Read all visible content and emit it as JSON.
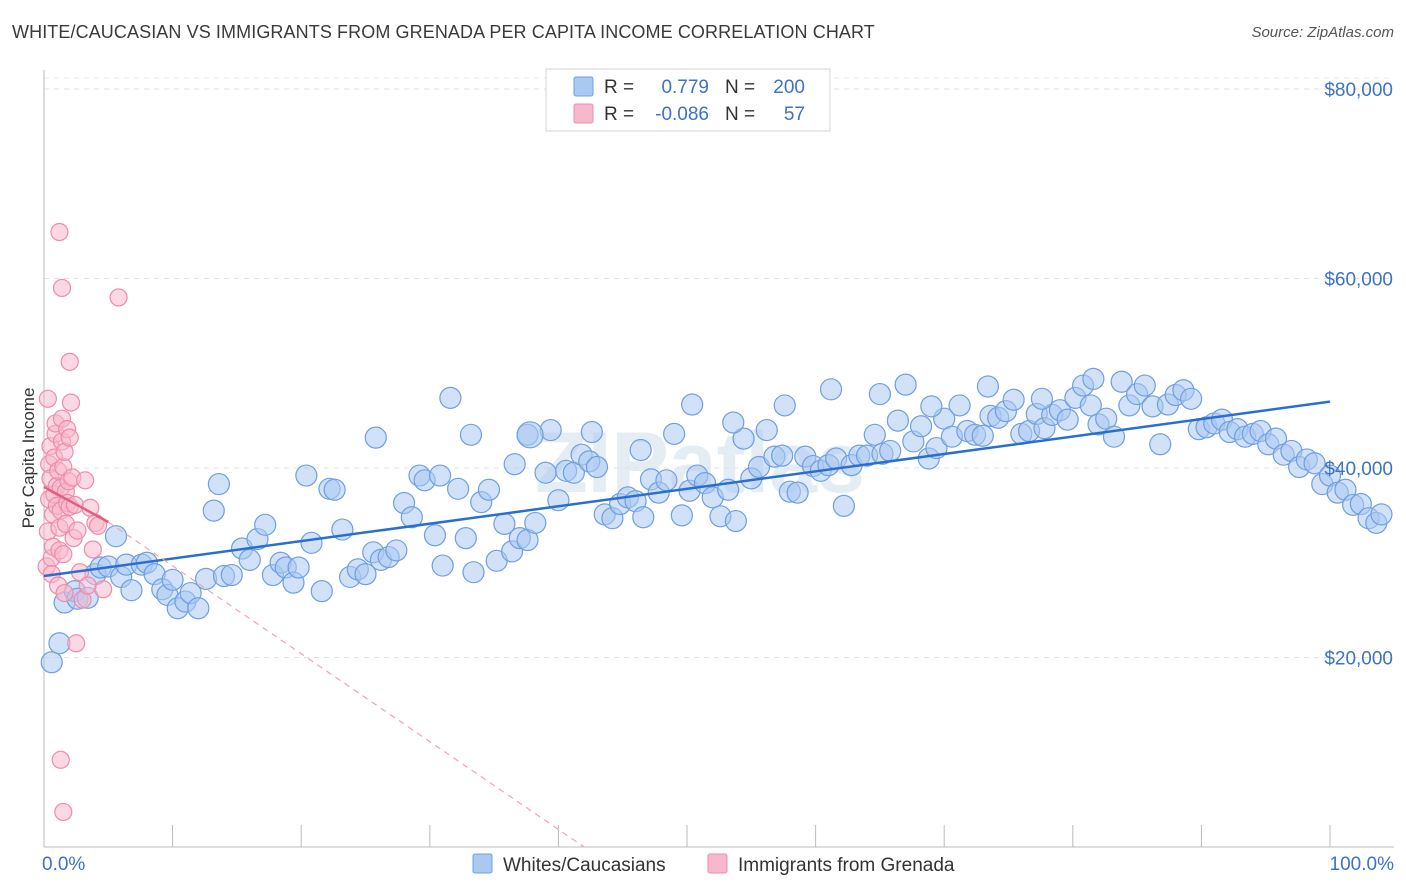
{
  "title": "WHITE/CAUCASIAN VS IMMIGRANTS FROM GRENADA PER CAPITA INCOME CORRELATION CHART",
  "source": "Source: ZipAtlas.com",
  "watermark": "ZIPatlas",
  "legend": {
    "rows": [
      {
        "r_label": "R =",
        "r_value": "0.779",
        "n_label": "N =",
        "n_value": "200",
        "color": "#a9c8f2"
      },
      {
        "r_label": "R =",
        "r_value": "-0.086",
        "n_label": "N =",
        "n_value": "57",
        "color": "#f7b8cc"
      }
    ]
  },
  "bottom_legend": [
    {
      "label": "Whites/Caucasians",
      "color": "#a9c8f2"
    },
    {
      "label": "Immigrants from Grenada",
      "color": "#f7b8cc"
    }
  ],
  "chart_data": {
    "type": "scatter",
    "title": "WHITE/CAUCASIAN VS IMMIGRANTS FROM GRENADA PER CAPITA INCOME CORRELATION CHART",
    "xlabel": "",
    "ylabel": "Per Capita Income",
    "xlim": [
      0,
      100
    ],
    "ylim": [
      0,
      82000
    ],
    "x_edge_labels": [
      "0.0%",
      "100.0%"
    ],
    "y_ticks": [
      20000,
      40000,
      60000,
      80000
    ],
    "y_tick_labels": [
      "$20,000",
      "$40,000",
      "$60,000",
      "$80,000"
    ],
    "grid": "horizontal dashed",
    "legend_position": "top-center",
    "series": [
      {
        "name": "Whites/Caucasians",
        "color": "#6f9fe0",
        "fill": "#a9c8f2",
        "r": 0.779,
        "n": 200,
        "trend": {
          "x": [
            0,
            100
          ],
          "y": [
            28600,
            47000
          ]
        },
        "points": [
          [
            0.6,
            19500
          ],
          [
            1.2,
            21500
          ],
          [
            1.6,
            25800
          ],
          [
            2.4,
            27000
          ],
          [
            2.6,
            26200
          ],
          [
            3.4,
            26300
          ],
          [
            4.0,
            28800
          ],
          [
            4.4,
            29500
          ],
          [
            5.0,
            29600
          ],
          [
            5.6,
            32800
          ],
          [
            6.0,
            28500
          ],
          [
            6.4,
            29800
          ],
          [
            6.8,
            27100
          ],
          [
            7.6,
            29800
          ],
          [
            8.0,
            30000
          ],
          [
            8.6,
            28800
          ],
          [
            9.2,
            27200
          ],
          [
            9.6,
            26600
          ],
          [
            10.0,
            28200
          ],
          [
            10.4,
            25200
          ],
          [
            11.0,
            25900
          ],
          [
            11.4,
            26800
          ],
          [
            12.0,
            25200
          ],
          [
            12.6,
            28300
          ],
          [
            13.2,
            35500
          ],
          [
            13.6,
            38300
          ],
          [
            14.0,
            28600
          ],
          [
            14.6,
            28700
          ],
          [
            15.4,
            31500
          ],
          [
            16.0,
            30300
          ],
          [
            16.6,
            32500
          ],
          [
            17.2,
            34000
          ],
          [
            17.8,
            28700
          ],
          [
            18.4,
            30000
          ],
          [
            18.8,
            29500
          ],
          [
            19.4,
            27900
          ],
          [
            19.8,
            29500
          ],
          [
            20.4,
            39200
          ],
          [
            20.8,
            32100
          ],
          [
            21.6,
            27000
          ],
          [
            22.2,
            37800
          ],
          [
            22.6,
            37700
          ],
          [
            23.2,
            33500
          ],
          [
            23.8,
            28500
          ],
          [
            24.4,
            29300
          ],
          [
            25.0,
            28800
          ],
          [
            25.6,
            31100
          ],
          [
            26.2,
            30300
          ],
          [
            26.8,
            30600
          ],
          [
            27.4,
            31300
          ],
          [
            28.0,
            36300
          ],
          [
            28.6,
            34800
          ],
          [
            29.2,
            39200
          ],
          [
            29.6,
            38700
          ],
          [
            30.4,
            32900
          ],
          [
            31.0,
            29700
          ],
          [
            31.6,
            47400
          ],
          [
            32.2,
            37800
          ],
          [
            32.8,
            32600
          ],
          [
            33.4,
            29000
          ],
          [
            34.0,
            36400
          ],
          [
            34.6,
            37700
          ],
          [
            35.2,
            30200
          ],
          [
            35.8,
            34100
          ],
          [
            36.4,
            31200
          ],
          [
            37.0,
            32600
          ],
          [
            37.6,
            32400
          ],
          [
            38.2,
            34200
          ],
          [
            37.6,
            43500
          ],
          [
            39.4,
            44000
          ],
          [
            40.0,
            36600
          ],
          [
            40.6,
            39700
          ],
          [
            41.2,
            39500
          ],
          [
            41.8,
            41400
          ],
          [
            42.4,
            40700
          ],
          [
            43.0,
            40100
          ],
          [
            43.6,
            35100
          ],
          [
            44.2,
            34700
          ],
          [
            44.8,
            36200
          ],
          [
            45.4,
            36900
          ],
          [
            46.0,
            36500
          ],
          [
            46.6,
            34800
          ],
          [
            47.2,
            38800
          ],
          [
            47.8,
            37400
          ],
          [
            48.4,
            38700
          ],
          [
            49.0,
            43600
          ],
          [
            49.6,
            35000
          ],
          [
            50.2,
            37600
          ],
          [
            50.8,
            39200
          ],
          [
            51.4,
            38400
          ],
          [
            52.0,
            36900
          ],
          [
            52.6,
            34900
          ],
          [
            53.2,
            37700
          ],
          [
            53.8,
            34400
          ],
          [
            54.4,
            43100
          ],
          [
            55.0,
            38900
          ],
          [
            55.6,
            40100
          ],
          [
            56.2,
            44000
          ],
          [
            56.8,
            41200
          ],
          [
            57.4,
            41300
          ],
          [
            58.0,
            37500
          ],
          [
            58.6,
            37400
          ],
          [
            59.2,
            41200
          ],
          [
            59.8,
            40200
          ],
          [
            60.4,
            39700
          ],
          [
            61.0,
            40300
          ],
          [
            61.6,
            41000
          ],
          [
            62.2,
            36000
          ],
          [
            62.8,
            40300
          ],
          [
            63.4,
            41300
          ],
          [
            64.0,
            41300
          ],
          [
            64.6,
            43500
          ],
          [
            65.2,
            41500
          ],
          [
            65.8,
            41800
          ],
          [
            66.4,
            45000
          ],
          [
            67.0,
            48800
          ],
          [
            67.6,
            42800
          ],
          [
            68.2,
            44400
          ],
          [
            68.8,
            41000
          ],
          [
            69.4,
            42100
          ],
          [
            70.0,
            45200
          ],
          [
            70.6,
            43300
          ],
          [
            71.2,
            46600
          ],
          [
            71.8,
            43900
          ],
          [
            72.4,
            43500
          ],
          [
            73.0,
            43400
          ],
          [
            73.6,
            45500
          ],
          [
            74.2,
            45300
          ],
          [
            74.8,
            46000
          ],
          [
            75.4,
            47200
          ],
          [
            76.0,
            43600
          ],
          [
            76.6,
            43900
          ],
          [
            77.2,
            45700
          ],
          [
            77.8,
            44200
          ],
          [
            78.4,
            45600
          ],
          [
            79.0,
            46100
          ],
          [
            79.6,
            45100
          ],
          [
            80.2,
            47400
          ],
          [
            80.8,
            48700
          ],
          [
            81.4,
            46600
          ],
          [
            82.0,
            44600
          ],
          [
            82.6,
            45200
          ],
          [
            83.2,
            43300
          ],
          [
            83.8,
            49100
          ],
          [
            84.4,
            46600
          ],
          [
            85.0,
            47800
          ],
          [
            85.6,
            48700
          ],
          [
            86.2,
            46500
          ],
          [
            86.8,
            42500
          ],
          [
            87.4,
            46700
          ],
          [
            88.0,
            47700
          ],
          [
            88.6,
            48200
          ],
          [
            89.2,
            47300
          ],
          [
            89.8,
            44100
          ],
          [
            90.4,
            44300
          ],
          [
            91.0,
            44700
          ],
          [
            91.6,
            45100
          ],
          [
            92.2,
            43800
          ],
          [
            92.8,
            44100
          ],
          [
            93.4,
            43300
          ],
          [
            94.0,
            43600
          ],
          [
            94.6,
            43900
          ],
          [
            95.2,
            42500
          ],
          [
            95.8,
            43100
          ],
          [
            96.4,
            41400
          ],
          [
            97.0,
            41800
          ],
          [
            97.6,
            40100
          ],
          [
            98.2,
            40900
          ],
          [
            98.8,
            40500
          ],
          [
            99.4,
            38300
          ],
          [
            100.0,
            39200
          ],
          [
            100.6,
            37400
          ],
          [
            101.2,
            37700
          ],
          [
            101.8,
            36100
          ],
          [
            102.4,
            36200
          ],
          [
            103.0,
            34700
          ],
          [
            103.6,
            34200
          ],
          [
            104.0,
            35100
          ],
          [
            25.8,
            43200
          ],
          [
            30.8,
            39200
          ],
          [
            33.2,
            43500
          ],
          [
            36.6,
            40400
          ],
          [
            39.0,
            39500
          ],
          [
            42.6,
            43800
          ],
          [
            46.4,
            41900
          ],
          [
            50.4,
            46700
          ],
          [
            53.6,
            44800
          ],
          [
            57.6,
            46600
          ],
          [
            61.2,
            48300
          ],
          [
            65.0,
            47800
          ],
          [
            69.0,
            46500
          ],
          [
            73.4,
            48600
          ],
          [
            77.6,
            47300
          ],
          [
            81.6,
            49400
          ]
        ],
        "large_point": [
          37.8,
          43500
        ]
      },
      {
        "name": "Immigrants from Grenada",
        "color": "#ee8cab",
        "fill": "#f7b8cc",
        "r": -0.086,
        "n": 57,
        "trend": {
          "x": [
            0,
            5
          ],
          "y": [
            38000,
            34300
          ]
        },
        "trend_dashed": {
          "x": [
            5,
            42
          ],
          "y": [
            34300,
            0
          ]
        },
        "points": [
          [
            0.2,
            29600
          ],
          [
            0.3,
            33300
          ],
          [
            0.4,
            36700
          ],
          [
            0.4,
            40400
          ],
          [
            0.5,
            38900
          ],
          [
            0.5,
            42300
          ],
          [
            0.6,
            30500
          ],
          [
            0.6,
            28800
          ],
          [
            0.7,
            31700
          ],
          [
            0.7,
            35100
          ],
          [
            0.8,
            37200
          ],
          [
            0.8,
            41100
          ],
          [
            0.9,
            43600
          ],
          [
            0.9,
            44700
          ],
          [
            1.0,
            38100
          ],
          [
            1.0,
            36000
          ],
          [
            1.1,
            39700
          ],
          [
            1.1,
            27600
          ],
          [
            1.2,
            31300
          ],
          [
            1.2,
            33700
          ],
          [
            1.3,
            37900
          ],
          [
            1.3,
            35500
          ],
          [
            1.4,
            42800
          ],
          [
            1.4,
            45200
          ],
          [
            1.5,
            40100
          ],
          [
            1.5,
            30900
          ],
          [
            1.6,
            26800
          ],
          [
            1.6,
            41700
          ],
          [
            1.7,
            37500
          ],
          [
            1.7,
            34100
          ],
          [
            1.8,
            36300
          ],
          [
            1.8,
            44100
          ],
          [
            1.9,
            38600
          ],
          [
            2.0,
            35900
          ],
          [
            2.0,
            43200
          ],
          [
            2.1,
            46900
          ],
          [
            2.2,
            39000
          ],
          [
            2.3,
            32600
          ],
          [
            2.4,
            36100
          ],
          [
            2.5,
            21500
          ],
          [
            2.6,
            33400
          ],
          [
            2.8,
            29000
          ],
          [
            3.0,
            26100
          ],
          [
            3.2,
            38700
          ],
          [
            3.4,
            27600
          ],
          [
            3.6,
            35800
          ],
          [
            3.8,
            31400
          ],
          [
            4.0,
            34200
          ],
          [
            4.2,
            33900
          ],
          [
            4.6,
            27200
          ],
          [
            1.2,
            64900
          ],
          [
            1.4,
            59000
          ],
          [
            2.0,
            51200
          ],
          [
            5.8,
            58000
          ],
          [
            1.3,
            9200
          ],
          [
            1.5,
            3700
          ],
          [
            0.3,
            47300
          ]
        ]
      }
    ]
  }
}
